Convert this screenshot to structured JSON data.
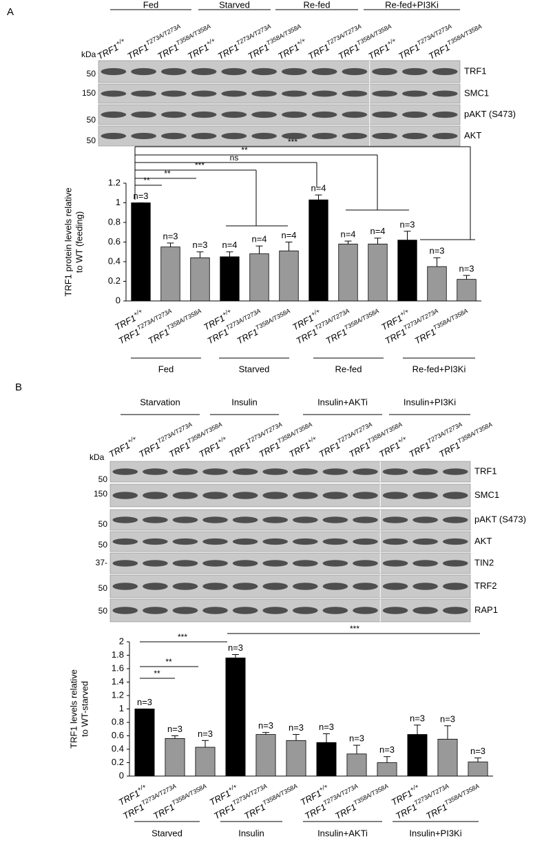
{
  "panel_labels": [
    "A",
    "B"
  ],
  "blots": [
    {
      "groups": [
        "Fed",
        "Starved",
        "Re-fed",
        "Re-fed+PI3Ki"
      ],
      "gene": "TRF1",
      "lanes": [
        "+/+",
        "T273A/T273A",
        "T358A/T358A",
        "+/+",
        "T273A/T273A",
        "T358A/T358A",
        "+/+",
        "T273A/T273A",
        "T358A/T358A",
        "+/+",
        "T273A/T273A",
        "T358A/T358A"
      ],
      "kda": "kDa",
      "rows": [
        {
          "label": "TRF1",
          "marker": "50"
        },
        {
          "label": "SMC1",
          "marker": "150"
        },
        {
          "label": "pAKT (S473)",
          "marker": "50"
        },
        {
          "label": "AKT",
          "marker": "50"
        }
      ]
    },
    {
      "groups": [
        "Starvation",
        "Insulin",
        "Insulin+AKTi",
        "Insulin+PI3Ki"
      ],
      "gene": "TRF1",
      "lanes": [
        "+/+",
        "T273A/T273A",
        "T358A/T358A",
        "+/+",
        "T273A/T273A",
        "T358A/T358A",
        "+/+",
        "T273A/T273A",
        "T358A/T358A",
        "+/+",
        "T273A/T273A",
        "T358A/T358A"
      ],
      "kda": "kDa",
      "rows": [
        {
          "label": "TRF1",
          "marker": "50"
        },
        {
          "label": "SMC1",
          "marker": "150"
        },
        {
          "label": "pAKT (S473)",
          "marker": "50"
        },
        {
          "label": "AKT",
          "marker": "50"
        },
        {
          "label": "TIN2",
          "marker": "37-"
        },
        {
          "label": "TRF2",
          "marker": "50"
        },
        {
          "label": "RAP1",
          "marker": "50"
        }
      ]
    }
  ],
  "chart_data": [
    {
      "type": "bar",
      "ylabel": [
        "TRF1 protein levels relative",
        "to WT (feeding)"
      ],
      "gene": "TRF1",
      "categories": [
        "+/+",
        "T273A/T273A",
        "T358A/T358A",
        "+/+",
        "T273A/T273A",
        "T358A/T358A",
        "+/+",
        "T273A/T273A",
        "T358A/T358A",
        "+/+",
        "T273A/T273A",
        "T358A/T358A"
      ],
      "values": [
        1,
        0.55,
        0.44,
        0.45,
        0.48,
        0.51,
        1.03,
        0.58,
        0.58,
        0.62,
        0.35,
        0.22
      ],
      "errors": [
        0,
        0.04,
        0.06,
        0.05,
        0.08,
        0.09,
        0.05,
        0.03,
        0.06,
        0.09,
        0.09,
        0.04
      ],
      "n_labels": [
        "n=3",
        "n=3",
        "n=3",
        "n=4",
        "n=4",
        "n=4",
        "n=4",
        "n=4",
        "n=4",
        "n=3",
        "n=3",
        "n=3"
      ],
      "colors": [
        "#000000",
        "#999999",
        "#999999",
        "#000000",
        "#999999",
        "#999999",
        "#000000",
        "#999999",
        "#999999",
        "#000000",
        "#999999",
        "#999999"
      ],
      "groups": [
        "Fed",
        "Starved",
        "Re-fed",
        "Re-fed+PI3Ki"
      ],
      "significance": [
        "**",
        "**",
        "***",
        "ns",
        "**",
        "***"
      ],
      "ylim": [
        0,
        1.2
      ],
      "yticks": [
        0,
        0.2,
        0.4,
        0.6,
        0.8,
        1,
        1.2
      ]
    },
    {
      "type": "bar",
      "ylabel": [
        "TRF1 levels relative",
        "to WT-starved"
      ],
      "gene": "TRF1",
      "categories": [
        "+/+",
        "T273A/T273A",
        "T358A/T358A",
        "+/+",
        "T273A/T273A",
        "T358A/T358A",
        "+/+",
        "T273A/T273A",
        "T358A/T358A",
        "+/+",
        "T273A/T273A",
        "T358A/T358A"
      ],
      "values": [
        1,
        0.56,
        0.43,
        1.76,
        0.62,
        0.53,
        0.5,
        0.33,
        0.2,
        0.62,
        0.55,
        0.21
      ],
      "errors": [
        0,
        0.04,
        0.1,
        0.05,
        0.03,
        0.09,
        0.13,
        0.13,
        0.09,
        0.14,
        0.2,
        0.06
      ],
      "n_labels": [
        "n=3",
        "n=3",
        "n=3",
        "n=3",
        "n=3",
        "n=3",
        "n=3",
        "n=3",
        "n=3",
        "n=3",
        "n=3",
        "n=3"
      ],
      "colors": [
        "#000000",
        "#999999",
        "#999999",
        "#000000",
        "#999999",
        "#999999",
        "#000000",
        "#999999",
        "#999999",
        "#000000",
        "#999999",
        "#999999"
      ],
      "groups": [
        "Starved",
        "Insulin",
        "Insulin+AKTi",
        "Insulin+PI3Ki"
      ],
      "significance": [
        "***",
        "***",
        "**",
        "**"
      ],
      "ylim": [
        0,
        2
      ],
      "yticks": [
        0,
        0.2,
        0.4,
        0.6,
        0.8,
        1,
        1.2,
        1.4,
        1.6,
        1.8,
        2
      ]
    }
  ]
}
